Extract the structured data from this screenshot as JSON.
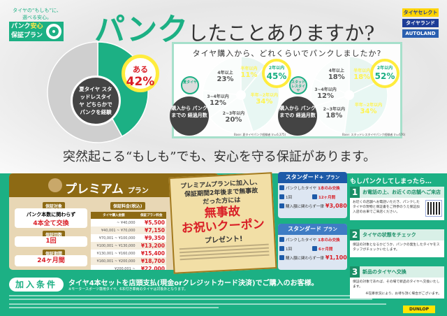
{
  "header": {
    "tagline": "タイヤの“もしも”に、選べる安心。",
    "logo_line1a": "パンク",
    "logo_line1b": "安心",
    "logo_line2": "保証プラン",
    "title_green": "パンク",
    "title_rest": "したことありますか?"
  },
  "brands": [
    {
      "label": "タイヤセレクト",
      "bg": "#ffd400",
      "fg": "#1d3c96"
    },
    {
      "label": "タイヤランド",
      "bg": "#1d3c96",
      "fg": "#ffffff"
    },
    {
      "label": "AUTOLAND",
      "bg": "#2a5fb0",
      "fg": "#ffffff"
    }
  ],
  "experience": {
    "center_text": "夏タイヤ スタッドレスタイヤ どちらかで パンクを経験",
    "badge_label": "ある",
    "badge_value": "42%",
    "percent": 42,
    "colors": {
      "yes": "#1cb084",
      "no": "#cfcfcf"
    }
  },
  "survey": {
    "title": "タイヤ購入から、どれくらいでパンクしましたか?",
    "pies": [
      {
        "chip": "夏タイヤ",
        "center": "購入から パンクまでの 経過月数",
        "highlight_label": "2年以内",
        "highlight_value": "45%",
        "base": "Base: 夏タイヤパンク経験者 (n=6,375)",
        "slices": [
          {
            "label": "半年以内",
            "value": 11,
            "color": "#159a6f"
          },
          {
            "label": "半年~2年以内",
            "value": 34,
            "color": "#1cb084"
          },
          {
            "label": "2~3年以内",
            "value": 20,
            "color": "#cde9dd"
          },
          {
            "label": "3~4年以内",
            "value": 12,
            "color": "#cde9dd"
          },
          {
            "label": "4年以上",
            "value": 23,
            "color": "#cde9dd"
          }
        ]
      },
      {
        "chip": "スタッドレスタイヤ",
        "center": "購入から パンクまでの 経過月数",
        "highlight_label": "2年以内",
        "highlight_value": "52%",
        "base": "Base: スタッドレスタイヤパンク経験者 (n=676)",
        "slices": [
          {
            "label": "半年以内",
            "value": 18,
            "color": "#159a6f"
          },
          {
            "label": "半年~2年以内",
            "value": 34,
            "color": "#1cb084"
          },
          {
            "label": "2~3年以内",
            "value": 18,
            "color": "#cde9dd"
          },
          {
            "label": "3~4年以内",
            "value": 12,
            "color": "#cde9dd"
          },
          {
            "label": "4年以上",
            "value": 18,
            "color": "#cde9dd"
          }
        ]
      }
    ]
  },
  "slogan": "突然起こる“もしも”でも、安心を守る保証があります。",
  "premium": {
    "title": "プレミアム",
    "title_suffix": "プラン",
    "target_label": "保証対象",
    "target_l1": "パンク本数に関わらず",
    "target_l2": "4本全て交換",
    "count_label": "保証回数",
    "count": "1回",
    "period_label": "保証期間",
    "period": "24ヶ月間",
    "fee_label": "保証料金(税込)",
    "fee_headers": [
      "タイヤ購入金額",
      "保証プラン料金"
    ],
    "fees": [
      [
        "~ ¥40,000",
        "¥5,500"
      ],
      [
        "¥40,001 ~ ¥70,000",
        "¥7,150"
      ],
      [
        "¥70,001 ~ ¥100,000",
        "¥9,350"
      ],
      [
        "¥100,001 ~ ¥130,000",
        "¥13,200"
      ],
      [
        "¥130,001 ~ ¥160,000",
        "¥15,400"
      ],
      [
        "¥160,001 ~ ¥200,000",
        "¥18,700"
      ],
      [
        "¥200,001 ~",
        "¥22,000"
      ]
    ]
  },
  "coupon": {
    "l1": "プレミアムプランに加入し、",
    "l2": "保証期間2年後まで無事故",
    "l3": "だった方には",
    "r1": "無事故",
    "r2": "お祝いクーポン",
    "p": "プレゼント!"
  },
  "standard_plus": {
    "title": "スタンダード+",
    "suffix": "プラン",
    "target": "パンクしたタイヤ",
    "target_red": "1本のみ交換",
    "count": "1回",
    "period": "12ヶ月間",
    "fee_text": "購入額に関わらず一律",
    "fee": "¥3,080"
  },
  "standard": {
    "title": "スタンダード",
    "suffix": "プラン",
    "target": "パンクしたタイヤ",
    "target_red": "1本のみ交換",
    "count": "1回",
    "period": "6ヶ月間",
    "fee_text": "購入額に関わらず一律",
    "fee": "¥1,100"
  },
  "steps": {
    "title": "もしパンクしてしまったら…",
    "items": [
      {
        "n": "1",
        "title": "お電話の上、お近くの店舗へご来店",
        "body": "お近くの店舗へお電話いただき、パンクしたタイヤの現物と保証書をご持参のうえ保証加入店のお車でご来店ください。"
      },
      {
        "n": "2",
        "title": "タイヤの状態をチェック",
        "body": "保証の対象となるかどうか、パンクの発生したタイヤをスタッフがチェックいたします。"
      },
      {
        "n": "3",
        "title": "新品のタイヤへ交換",
        "body": "保証の対象であれば、その場で新品のタイヤへ交換いたします。",
        "note": "※在庫状況により、お待ち頂く場合がございます。"
      }
    ]
  },
  "join": {
    "label": "加入条件",
    "text": "タイヤ4本セットを店頭支払(現金orクレジットカード決済)でご購入のお客様。",
    "note": "※モータースポーツ専用タイヤ、6本付き車両のタイヤは対象外となります。"
  },
  "footer": {
    "dunlop": "DUNLOP"
  }
}
